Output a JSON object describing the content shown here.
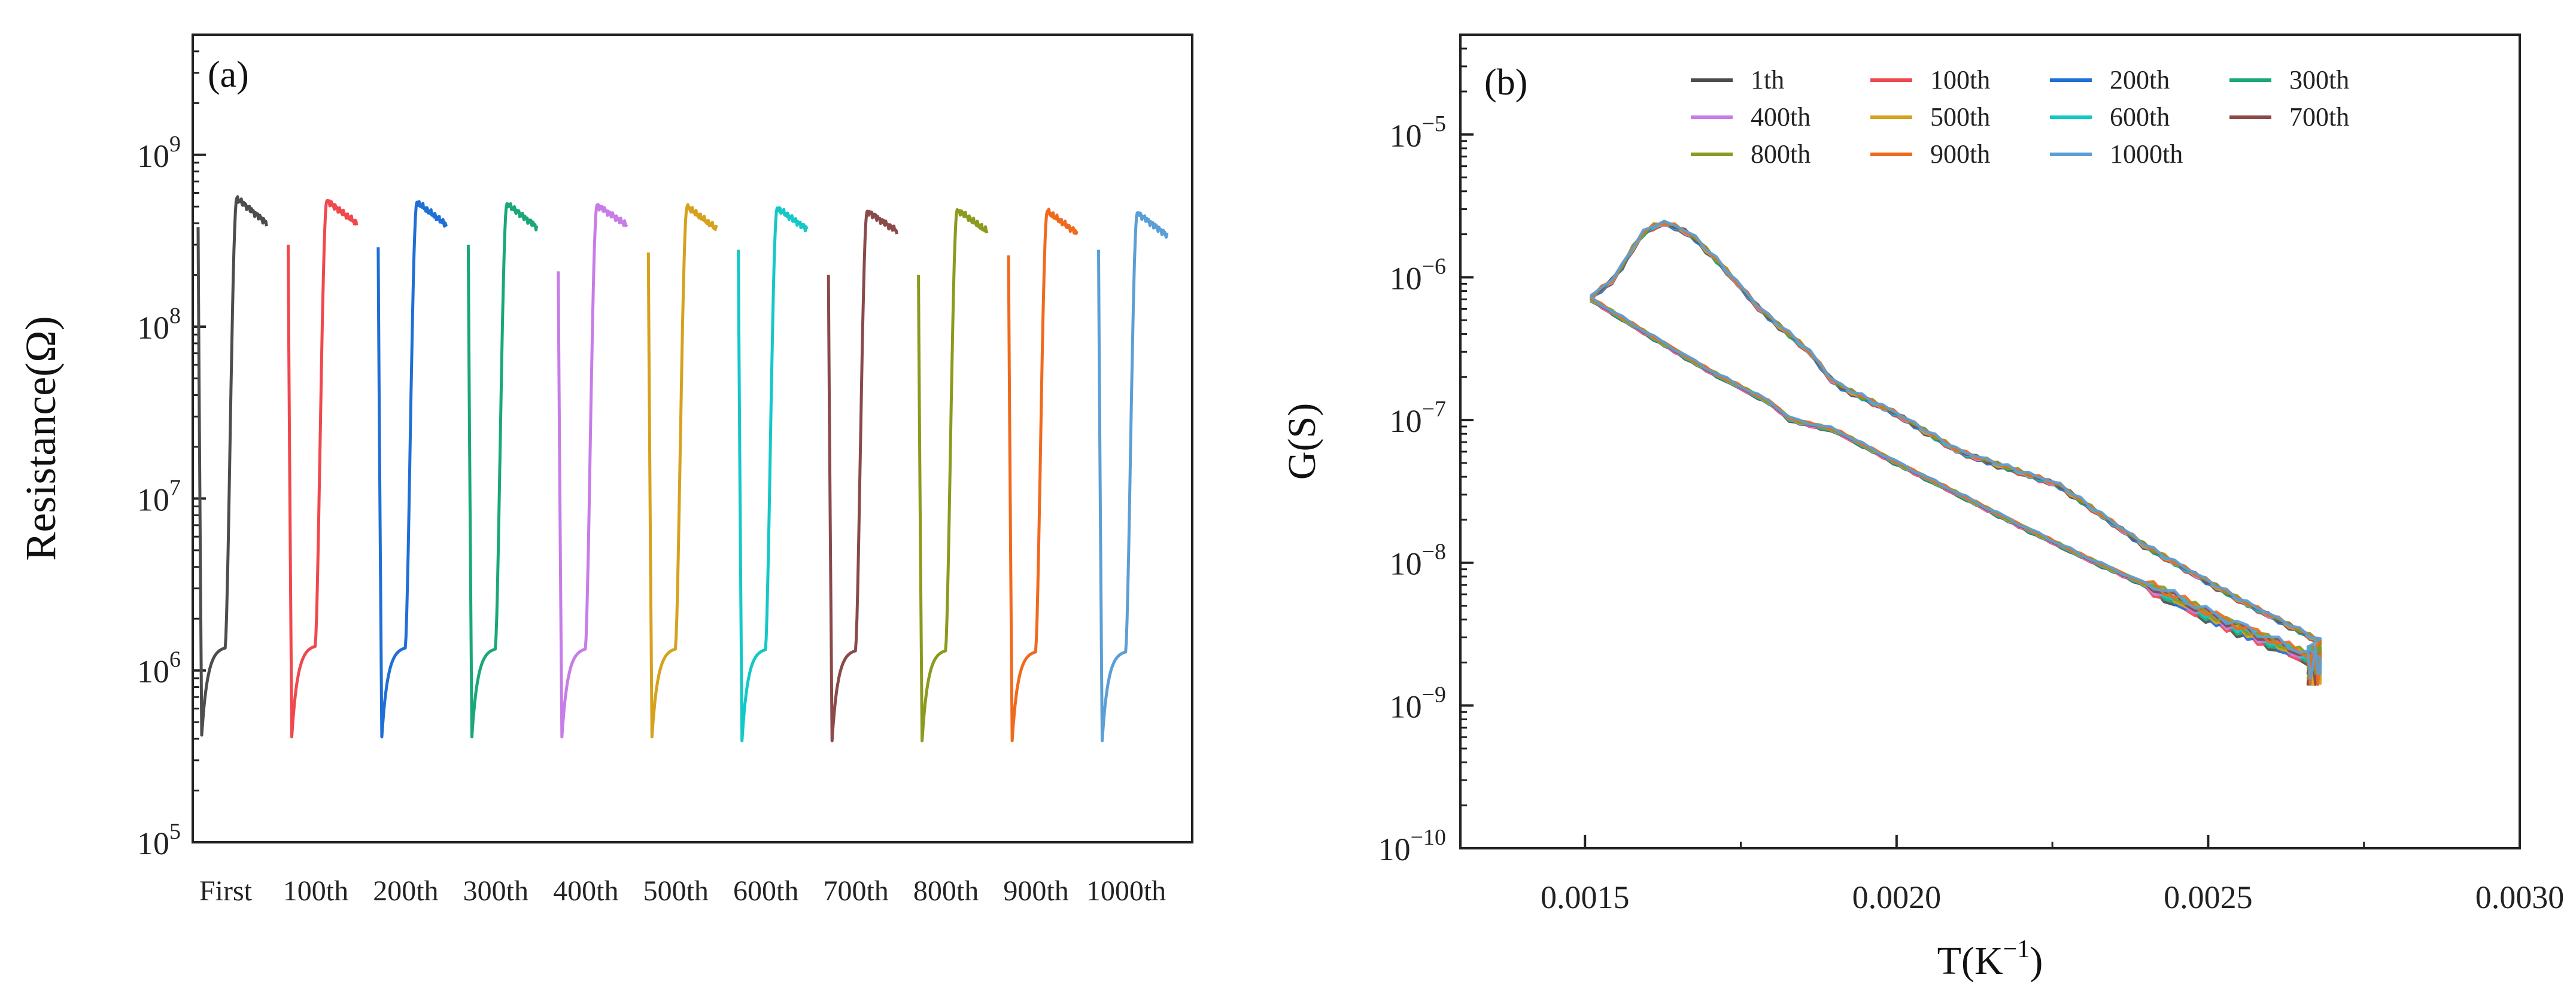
{
  "chart_data": [
    {
      "type": "line",
      "panel_label": "(a)",
      "ylabel": "Resistance(Ω)",
      "xlabel": "",
      "yscale": "log",
      "ylim": [
        100000,
        5000000000
      ],
      "yticks": [
        {
          "value": 100000,
          "base": "10",
          "exp": "5"
        },
        {
          "value": 1000000,
          "base": "10",
          "exp": "6"
        },
        {
          "value": 10000000,
          "base": "10",
          "exp": "7"
        },
        {
          "value": 100000000,
          "base": "10",
          "exp": "8"
        },
        {
          "value": 1000000000,
          "base": "10",
          "exp": "9"
        }
      ],
      "x_unit": "cycle index",
      "xlim": [
        0,
        11.1
      ],
      "categories": [
        "First",
        "100th",
        "200th",
        "300th",
        "400th",
        "500th",
        "600th",
        "700th",
        "800th",
        "900th",
        "1000th"
      ],
      "category_positions": [
        0,
        1,
        2,
        3,
        4,
        5,
        6,
        7,
        8,
        9,
        10
      ],
      "cycle_profile_note": "each series: fast drop from start value to minimum, slow rise to a plateau near 1.3e6, sharp rise to a peak, slight decay to end",
      "series": [
        {
          "name": "1th",
          "color": "#4d4d4d",
          "start": 380000000.0,
          "min": 420000.0,
          "plateau": 1350000.0,
          "peak": 560000000.0,
          "end": 400000000.0
        },
        {
          "name": "100th",
          "color": "#f0484d",
          "start": 300000000.0,
          "min": 410000.0,
          "plateau": 1380000.0,
          "peak": 540000000.0,
          "end": 400000000.0
        },
        {
          "name": "200th",
          "color": "#1f6fd6",
          "start": 290000000.0,
          "min": 410000.0,
          "plateau": 1350000.0,
          "peak": 530000000.0,
          "end": 390000000.0
        },
        {
          "name": "300th",
          "color": "#1aa876",
          "start": 300000000.0,
          "min": 410000.0,
          "plateau": 1330000.0,
          "peak": 520000000.0,
          "end": 380000000.0
        },
        {
          "name": "400th",
          "color": "#c77ce8",
          "start": 210000000.0,
          "min": 410000.0,
          "plateau": 1330000.0,
          "peak": 510000000.0,
          "end": 390000000.0
        },
        {
          "name": "500th",
          "color": "#d6a21e",
          "start": 270000000.0,
          "min": 410000.0,
          "plateau": 1330000.0,
          "peak": 500000000.0,
          "end": 370000000.0
        },
        {
          "name": "600th",
          "color": "#14c8c8",
          "start": 280000000.0,
          "min": 390000.0,
          "plateau": 1320000.0,
          "peak": 490000000.0,
          "end": 370000000.0
        },
        {
          "name": "700th",
          "color": "#8a4a4a",
          "start": 200000000.0,
          "min": 390000.0,
          "plateau": 1300000.0,
          "peak": 470000000.0,
          "end": 360000000.0
        },
        {
          "name": "800th",
          "color": "#8c9a1e",
          "start": 200000000.0,
          "min": 390000.0,
          "plateau": 1300000.0,
          "peak": 480000000.0,
          "end": 360000000.0
        },
        {
          "name": "900th",
          "color": "#f06a1e",
          "start": 260000000.0,
          "min": 390000.0,
          "plateau": 1280000.0,
          "peak": 470000000.0,
          "end": 350000000.0
        },
        {
          "name": "1000th",
          "color": "#5b9fd6",
          "start": 280000000.0,
          "min": 390000.0,
          "plateau": 1280000.0,
          "peak": 460000000.0,
          "end": 340000000.0
        }
      ]
    },
    {
      "type": "line",
      "panel_label": "(b)",
      "xlabel": "T(K",
      "xlabel_sup": "−1",
      "xlabel_close": ")",
      "ylabel": "G(S)",
      "yscale": "log",
      "xlim": [
        0.0013,
        0.003
      ],
      "ylim": [
        1e-10,
        5e-05
      ],
      "xticks": [
        "0.0015",
        "0.0020",
        "0.0025",
        "0.0030"
      ],
      "xtick_values": [
        0.0015,
        0.002,
        0.0025,
        0.003
      ],
      "yticks": [
        {
          "value": 1e-10,
          "base": "10",
          "exp": "−10"
        },
        {
          "value": 1e-09,
          "base": "10",
          "exp": "−9"
        },
        {
          "value": 1e-08,
          "base": "10",
          "exp": "−8"
        },
        {
          "value": 1e-07,
          "base": "10",
          "exp": "−7"
        },
        {
          "value": 1e-06,
          "base": "10",
          "exp": "−6"
        },
        {
          "value": 1e-05,
          "base": "10",
          "exp": "−5"
        }
      ],
      "legend_position": "top",
      "legend": [
        "1th",
        "100th",
        "200th",
        "300th",
        "400th",
        "500th",
        "600th",
        "700th",
        "800th",
        "900th",
        "1000th"
      ],
      "loop_upper": {
        "x": [
          0.00151,
          0.00155,
          0.00158,
          0.0016,
          0.00163,
          0.00167,
          0.00172,
          0.00178,
          0.00186,
          0.0019,
          0.002,
          0.0021,
          0.00226,
          0.0024,
          0.00255,
          0.00268
        ],
        "y": [
          7.2e-07,
          1e-06,
          1.7e-06,
          2.2e-06,
          2.4e-06,
          2e-06,
          1.2e-06,
          6e-07,
          3e-07,
          1.8e-07,
          1.1e-07,
          6e-08,
          3.5e-08,
          1.3e-08,
          5.5e-09,
          2.8e-09
        ]
      },
      "loop_lower": {
        "x": [
          0.00151,
          0.0016,
          0.0017,
          0.0018,
          0.00183,
          0.0019,
          0.002,
          0.0021,
          0.0022,
          0.0023,
          0.0024,
          0.0025,
          0.0026,
          0.00268
        ],
        "y": [
          7e-07,
          4e-07,
          2.2e-07,
          1.3e-07,
          1e-07,
          8.5e-08,
          5e-08,
          3e-08,
          1.8e-08,
          1.1e-08,
          7e-09,
          4.3e-09,
          2.8e-09,
          2e-09
        ]
      }
    }
  ]
}
